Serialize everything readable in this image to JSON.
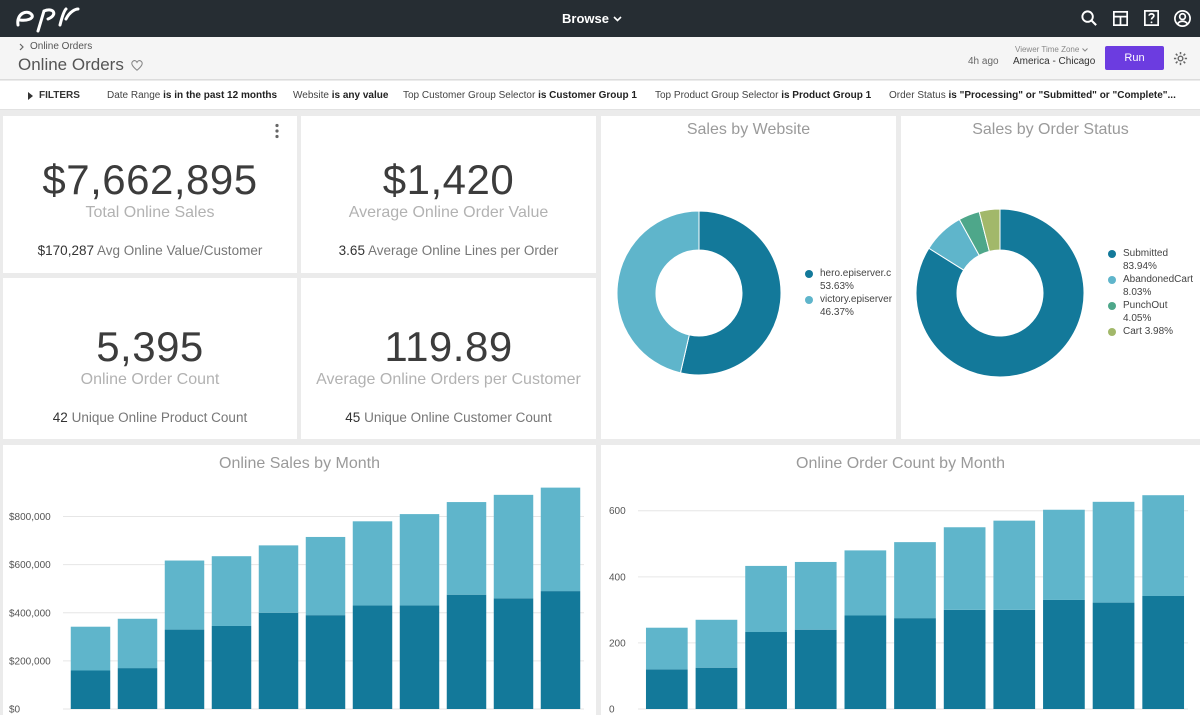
{
  "topbar": {
    "browse_label": "Browse"
  },
  "header": {
    "breadcrumb": "Online Orders",
    "title": "Online Orders",
    "updated": "4h ago",
    "timezone_label": "Viewer Time Zone",
    "timezone_value": "America - Chicago",
    "run_label": "Run"
  },
  "filters": {
    "toggle_label": "FILTERS",
    "items": [
      {
        "name": "Date Range",
        "cond": "is in the past 12 months"
      },
      {
        "name": "Website",
        "cond": "is any value"
      },
      {
        "name": "Top Customer Group Selector",
        "cond": "is Customer Group 1"
      },
      {
        "name": "Top Product Group Selector",
        "cond": "is Product Group 1"
      },
      {
        "name": "Order Status",
        "cond": "is \"Processing\" or \"Submitted\" or \"Complete\"..."
      }
    ]
  },
  "kpis": {
    "total_sales": {
      "value": "$7,662,895",
      "label": "Total Online Sales",
      "sub_value": "$170,287",
      "sub_label": "Avg Online Value/Customer"
    },
    "avg_order": {
      "value": "$1,420",
      "label": "Average Online Order Value",
      "sub_value": "3.65",
      "sub_label": "Average Online Lines per Order"
    },
    "order_count": {
      "value": "5,395",
      "label": "Online Order Count",
      "sub_value": "42",
      "sub_label": "Unique Online Product Count"
    },
    "orders_per_customer": {
      "value": "119.89",
      "label": "Average Online Orders per Customer",
      "sub_value": "45",
      "sub_label": "Unique Online Customer Count"
    }
  },
  "colors": {
    "dark": "#13799a",
    "light": "#5fb5cb",
    "green": "#4ea78a",
    "olive": "#a2b86a",
    "accent": "#6c3ce0"
  },
  "chart_data": [
    {
      "type": "pie",
      "title": "Sales by Website",
      "labels": [
        "hero.episerver.c",
        "victory.episerver"
      ],
      "values": [
        53.63,
        46.37
      ],
      "value_labels": [
        "53.63%",
        "46.37%"
      ],
      "colors": [
        "#13799a",
        "#5fb5cb"
      ]
    },
    {
      "type": "pie",
      "title": "Sales by Order Status",
      "labels": [
        "Submitted",
        "AbandonedCart",
        "PunchOut",
        "Cart"
      ],
      "values": [
        83.94,
        8.03,
        4.05,
        3.98
      ],
      "value_labels": [
        "83.94%",
        "8.03%",
        "4.05%",
        "3.98%"
      ],
      "colors": [
        "#13799a",
        "#5fb5cb",
        "#4ea78a",
        "#a2b86a"
      ]
    },
    {
      "type": "bar",
      "stacked": true,
      "title": "Online Sales by Month",
      "ylim": [
        0,
        960000
      ],
      "yticks": [
        0,
        200000,
        400000,
        600000,
        800000
      ],
      "ytick_labels": [
        "$0",
        "$200,000",
        "$400,000",
        "$600,000",
        "$800,000"
      ],
      "series": [
        {
          "name": "bottom",
          "values": [
            160000,
            170000,
            330000,
            345000,
            400000,
            390000,
            430000,
            430000,
            475000,
            460000,
            490000
          ]
        },
        {
          "name": "top",
          "values": [
            182000,
            205000,
            287000,
            290000,
            280000,
            325000,
            350000,
            380000,
            385000,
            430000,
            430000
          ]
        }
      ]
    },
    {
      "type": "bar",
      "stacked": true,
      "title": "Online Order Count by Month",
      "ylim": [
        0,
        690
      ],
      "yticks": [
        0,
        200,
        400,
        600
      ],
      "ytick_labels": [
        "0",
        "200",
        "400",
        "600"
      ],
      "series": [
        {
          "name": "bottom",
          "values": [
            120,
            125,
            233,
            240,
            283,
            275,
            300,
            300,
            330,
            322,
            342
          ]
        },
        {
          "name": "top",
          "values": [
            126,
            145,
            200,
            205,
            197,
            230,
            250,
            270,
            273,
            305,
            305
          ]
        }
      ]
    }
  ]
}
